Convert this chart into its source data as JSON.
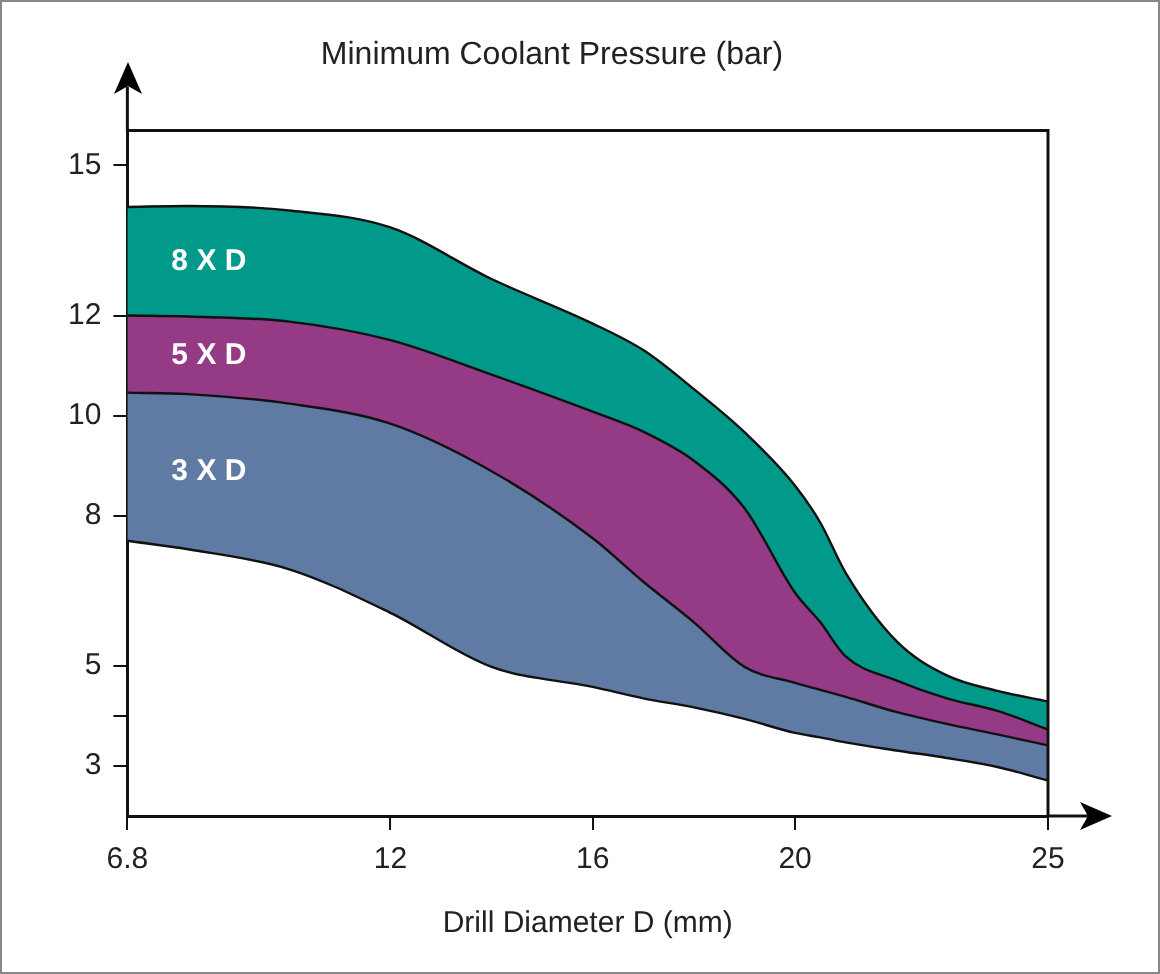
{
  "chart_data": {
    "type": "area",
    "title": "Minimum Coolant Pressure (bar)",
    "xlabel": "Drill Diameter D (mm)",
    "x": [
      6.8,
      8,
      10,
      12,
      14,
      16,
      17,
      18,
      19,
      20,
      20.5,
      21,
      22,
      23,
      24,
      25
    ],
    "xlim": [
      6.8,
      25
    ],
    "xticks": [
      6.8,
      12,
      16,
      20,
      25
    ],
    "ylim": [
      2,
      15.7
    ],
    "yticks": [
      15,
      12,
      10,
      8,
      5,
      {
        "value": 4,
        "label": null
      },
      3
    ],
    "series": [
      {
        "type": "line",
        "color": "#111111",
        "values": [
          7.5,
          7.33,
          6.93,
          6.06,
          4.98,
          4.58,
          4.35,
          4.17,
          3.94,
          3.66,
          3.57,
          3.47,
          3.31,
          3.16,
          2.98,
          2.71
        ]
      },
      {
        "name": "3 X D",
        "color": "#5f7aa3",
        "values": [
          10.46,
          10.43,
          10.24,
          9.84,
          8.89,
          7.55,
          6.68,
          5.87,
          4.98,
          4.66,
          4.52,
          4.38,
          4.08,
          3.84,
          3.63,
          3.41
        ]
      },
      {
        "name": "5 X D",
        "color": "#953a84",
        "values": [
          12.0,
          11.98,
          11.88,
          11.51,
          10.82,
          10.08,
          9.68,
          9.1,
          8.15,
          6.46,
          5.87,
          5.19,
          4.71,
          4.35,
          4.1,
          3.73
        ]
      },
      {
        "name": "8 X D",
        "color": "#00998a",
        "values": [
          14.17,
          14.19,
          14.1,
          13.76,
          12.73,
          11.84,
          11.31,
          10.53,
          9.67,
          8.6,
          7.86,
          6.86,
          5.5,
          4.81,
          4.5,
          4.29
        ]
      }
    ]
  }
}
